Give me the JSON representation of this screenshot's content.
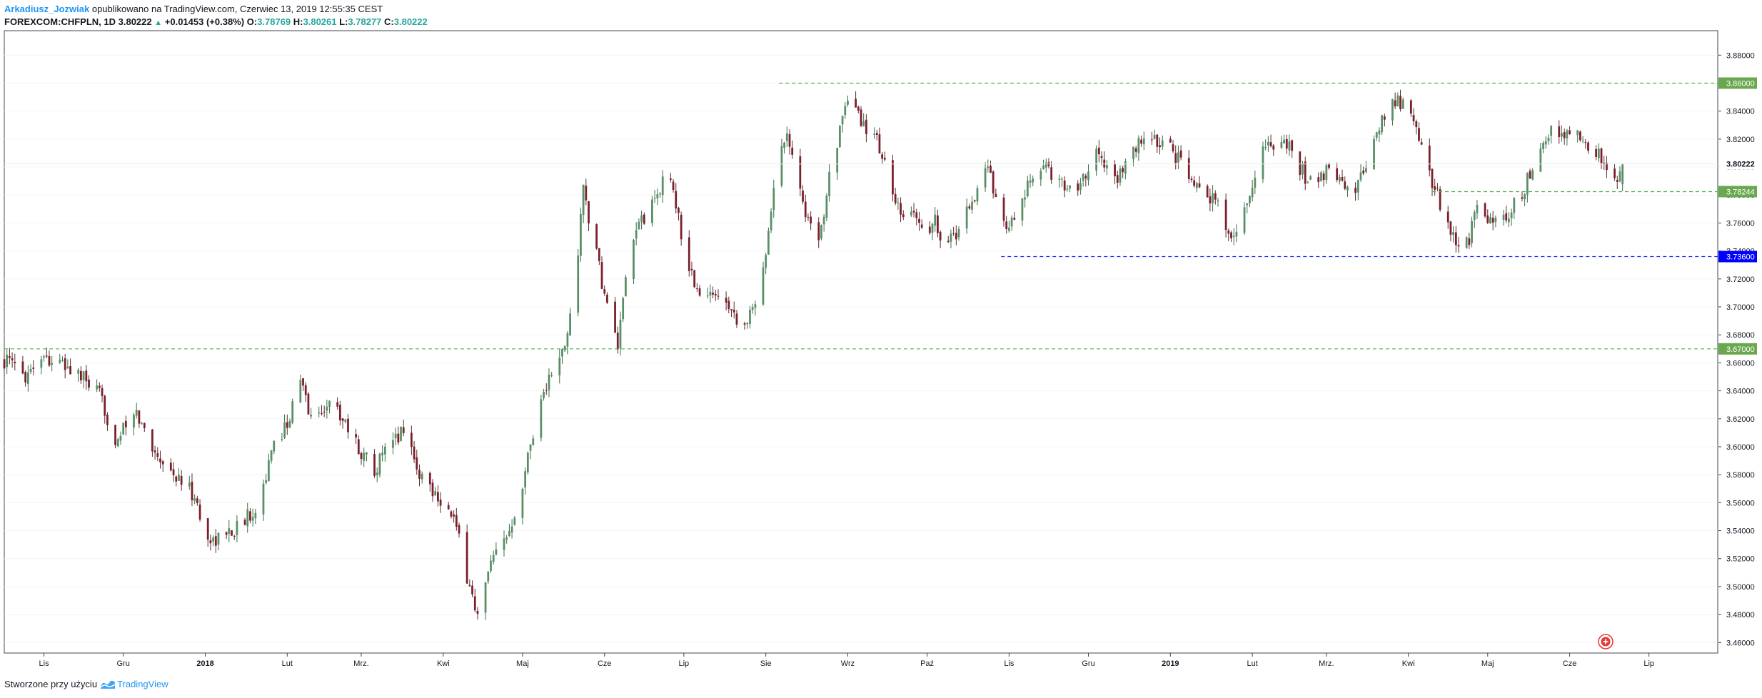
{
  "header": {
    "author": "Arkadiusz_Jozwiak",
    "published": "opublikowano na TradingView.com, Czerwiec 13, 2019 12:55:35 CEST",
    "symbol": "FOREXCOM:CHFPLN, 1D",
    "last": "3.80222",
    "change": "+0.01453 (+0.38%)",
    "o_label": "O:",
    "o": "3.78769",
    "h_label": "H:",
    "h": "3.80261",
    "l_label": "L:",
    "l": "3.78277",
    "c_label": "C:",
    "c": "3.80222"
  },
  "footer": {
    "created": "Stworzone przy użyciu",
    "brand": "TradingView"
  },
  "chart_data": {
    "type": "candlestick",
    "y_ticks": [
      "3.88000",
      "3.86000",
      "3.84000",
      "3.82000",
      "3.80000",
      "3.78000",
      "3.76000",
      "3.74000",
      "3.72000",
      "3.70000",
      "3.68000",
      "3.66000",
      "3.64000",
      "3.62000",
      "3.60000",
      "3.58000",
      "3.56000",
      "3.54000",
      "3.52000",
      "3.50000",
      "3.48000",
      "3.46000"
    ],
    "ylim": [
      3.4525,
      3.8975
    ],
    "x_ticks": [
      {
        "label": "Lis",
        "day": 15,
        "bold": false
      },
      {
        "label": "Gru",
        "day": 45,
        "bold": false
      },
      {
        "label": "2018",
        "day": 76,
        "bold": true
      },
      {
        "label": "Lut",
        "day": 107,
        "bold": false
      },
      {
        "label": "Mrz.",
        "day": 135,
        "bold": false
      },
      {
        "label": "Kwi",
        "day": 166,
        "bold": false
      },
      {
        "label": "Maj",
        "day": 196,
        "bold": false
      },
      {
        "label": "Cze",
        "day": 227,
        "bold": false
      },
      {
        "label": "Lip",
        "day": 257,
        "bold": false
      },
      {
        "label": "Sie",
        "day": 288,
        "bold": false
      },
      {
        "label": "Wrz",
        "day": 319,
        "bold": false
      },
      {
        "label": "Paź",
        "day": 349,
        "bold": false
      },
      {
        "label": "Lis",
        "day": 380,
        "bold": false
      },
      {
        "label": "Gru",
        "day": 410,
        "bold": false
      },
      {
        "label": "2019",
        "day": 441,
        "bold": true
      },
      {
        "label": "Lut",
        "day": 472,
        "bold": false
      },
      {
        "label": "Mrz.",
        "day": 500,
        "bold": false
      },
      {
        "label": "Kwi",
        "day": 531,
        "bold": false
      },
      {
        "label": "Maj",
        "day": 561,
        "bold": false
      },
      {
        "label": "Cze",
        "day": 592,
        "bold": false
      },
      {
        "label": "Lip",
        "day": 622,
        "bold": false
      }
    ],
    "xlim": [
      0,
      648
    ],
    "levels": [
      {
        "label": "3.86000",
        "value": 3.86,
        "from_day": 293,
        "color": "#4caf50",
        "style": "dashed",
        "label_bg": "#6aa84f",
        "label_color": "#ffffff"
      },
      {
        "label": "3.78244",
        "value": 3.78244,
        "from_day": 540,
        "color": "#4caf50",
        "style": "dashed",
        "label_bg": "#6aa84f",
        "label_color": "#ffffff"
      },
      {
        "label": "3.73600",
        "value": 3.736,
        "from_day": 377,
        "color": "#1a1aff",
        "style": "dashed",
        "label_bg": "#0000ff",
        "label_color": "#ffffff"
      },
      {
        "label": "3.67000",
        "value": 3.67,
        "from_day": 0,
        "color": "#4caf50",
        "style": "dashed",
        "label_bg": "#6aa84f",
        "label_color": "#ffffff"
      }
    ],
    "last_price": {
      "label": "3.80222",
      "value": 3.80222
    },
    "anchors": [
      [
        0,
        3.662
      ],
      [
        8,
        3.652
      ],
      [
        14,
        3.666
      ],
      [
        20,
        3.66
      ],
      [
        28,
        3.652
      ],
      [
        36,
        3.636
      ],
      [
        42,
        3.605
      ],
      [
        50,
        3.623
      ],
      [
        56,
        3.6
      ],
      [
        64,
        3.58
      ],
      [
        72,
        3.565
      ],
      [
        76,
        3.533
      ],
      [
        82,
        3.535
      ],
      [
        90,
        3.545
      ],
      [
        96,
        3.56
      ],
      [
        102,
        3.6
      ],
      [
        108,
        3.622
      ],
      [
        112,
        3.647
      ],
      [
        117,
        3.615
      ],
      [
        122,
        3.632
      ],
      [
        128,
        3.622
      ],
      [
        134,
        3.598
      ],
      [
        140,
        3.585
      ],
      [
        146,
        3.6
      ],
      [
        152,
        3.617
      ],
      [
        156,
        3.583
      ],
      [
        164,
        3.566
      ],
      [
        170,
        3.548
      ],
      [
        175,
        3.508
      ],
      [
        179,
        3.478
      ],
      [
        184,
        3.515
      ],
      [
        190,
        3.535
      ],
      [
        196,
        3.575
      ],
      [
        202,
        3.63
      ],
      [
        206,
        3.648
      ],
      [
        212,
        3.67
      ],
      [
        216,
        3.718
      ],
      [
        219,
        3.785
      ],
      [
        223,
        3.745
      ],
      [
        228,
        3.7
      ],
      [
        232,
        3.672
      ],
      [
        236,
        3.73
      ],
      [
        240,
        3.762
      ],
      [
        244,
        3.767
      ],
      [
        248,
        3.785
      ],
      [
        252,
        3.795
      ],
      [
        256,
        3.752
      ],
      [
        260,
        3.722
      ],
      [
        264,
        3.702
      ],
      [
        268,
        3.71
      ],
      [
        272,
        3.712
      ],
      [
        276,
        3.695
      ],
      [
        280,
        3.688
      ],
      [
        284,
        3.7
      ],
      [
        288,
        3.742
      ],
      [
        292,
        3.8
      ],
      [
        296,
        3.828
      ],
      [
        300,
        3.79
      ],
      [
        304,
        3.762
      ],
      [
        308,
        3.742
      ],
      [
        312,
        3.798
      ],
      [
        316,
        3.826
      ],
      [
        320,
        3.85
      ],
      [
        324,
        3.832
      ],
      [
        328,
        3.826
      ],
      [
        332,
        3.81
      ],
      [
        336,
        3.778
      ],
      [
        340,
        3.76
      ],
      [
        344,
        3.77
      ],
      [
        348,
        3.75
      ],
      [
        352,
        3.762
      ],
      [
        356,
        3.745
      ],
      [
        360,
        3.752
      ],
      [
        364,
        3.77
      ],
      [
        368,
        3.783
      ],
      [
        372,
        3.8
      ],
      [
        376,
        3.772
      ],
      [
        380,
        3.756
      ],
      [
        384,
        3.768
      ],
      [
        388,
        3.79
      ],
      [
        392,
        3.8
      ],
      [
        396,
        3.796
      ],
      [
        400,
        3.788
      ],
      [
        404,
        3.783
      ],
      [
        408,
        3.793
      ],
      [
        412,
        3.81
      ],
      [
        416,
        3.805
      ],
      [
        420,
        3.79
      ],
      [
        424,
        3.8
      ],
      [
        428,
        3.813
      ],
      [
        432,
        3.825
      ],
      [
        436,
        3.817
      ],
      [
        440,
        3.815
      ],
      [
        444,
        3.805
      ],
      [
        448,
        3.79
      ],
      [
        452,
        3.79
      ],
      [
        456,
        3.78
      ],
      [
        460,
        3.77
      ],
      [
        463,
        3.748
      ],
      [
        466,
        3.755
      ],
      [
        470,
        3.775
      ],
      [
        474,
        3.8
      ],
      [
        478,
        3.82
      ],
      [
        482,
        3.815
      ],
      [
        486,
        3.813
      ],
      [
        490,
        3.8
      ],
      [
        494,
        3.788
      ],
      [
        498,
        3.793
      ],
      [
        502,
        3.8
      ],
      [
        506,
        3.79
      ],
      [
        510,
        3.78
      ],
      [
        514,
        3.795
      ],
      [
        518,
        3.823
      ],
      [
        522,
        3.835
      ],
      [
        526,
        3.848
      ],
      [
        530,
        3.845
      ],
      [
        534,
        3.828
      ],
      [
        538,
        3.8
      ],
      [
        542,
        3.78
      ],
      [
        546,
        3.76
      ],
      [
        550,
        3.742
      ],
      [
        554,
        3.75
      ],
      [
        558,
        3.775
      ],
      [
        562,
        3.76
      ],
      [
        566,
        3.758
      ],
      [
        570,
        3.77
      ],
      [
        574,
        3.78
      ],
      [
        578,
        3.8
      ],
      [
        582,
        3.815
      ],
      [
        586,
        3.828
      ],
      [
        590,
        3.82
      ],
      [
        594,
        3.825
      ],
      [
        598,
        3.815
      ],
      [
        602,
        3.81
      ],
      [
        606,
        3.8
      ],
      [
        610,
        3.786
      ],
      [
        612,
        3.8022
      ]
    ]
  }
}
